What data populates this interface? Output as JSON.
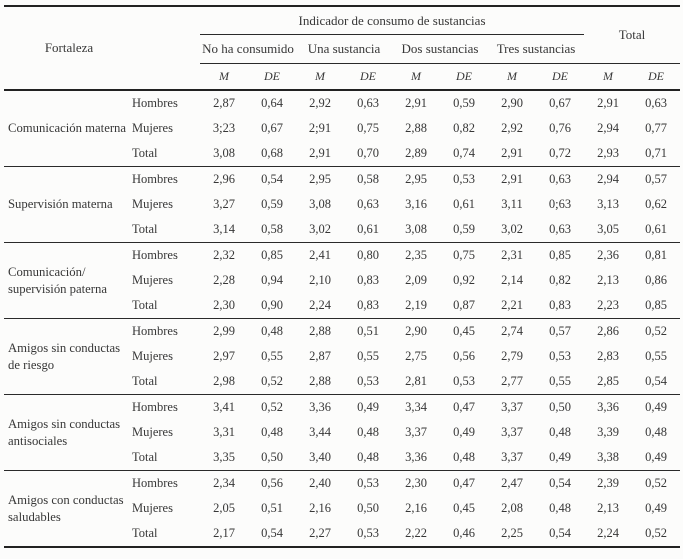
{
  "table": {
    "fortaleza_header": "Fortaleza",
    "span_header": "Indicador de consumo de sustancias",
    "total_header": "Total",
    "consumption_groups": [
      "No ha consumido",
      "Una sustancia",
      "Dos sustancias",
      "Tres sustancias"
    ],
    "stat_headers": [
      "M",
      "DE"
    ],
    "groups": [
      {
        "name": "Comunicación materna",
        "lines": [
          "Comunicación materna"
        ],
        "rows": [
          {
            "label": "Hombres",
            "values": [
              "2,87",
              "0,64",
              "2,92",
              "0,63",
              "2,91",
              "0,59",
              "2,90",
              "0,67",
              "2,91",
              "0,63"
            ]
          },
          {
            "label": "Mujeres",
            "values": [
              "3;23",
              "0,67",
              "2;91",
              "0,75",
              "2,88",
              "0,82",
              "2,92",
              "0,76",
              "2,94",
              "0,77"
            ]
          },
          {
            "label": "Total",
            "values": [
              "3,08",
              "0,68",
              "2,91",
              "0,70",
              "2,89",
              "0,74",
              "2,91",
              "0,72",
              "2,93",
              "0,71"
            ]
          }
        ]
      },
      {
        "name": "Supervisión materna",
        "lines": [
          "Supervisión materna"
        ],
        "rows": [
          {
            "label": "Hombres",
            "values": [
              "2,96",
              "0,54",
              "2,95",
              "0,58",
              "2,95",
              "0,53",
              "2,91",
              "0,63",
              "2,94",
              "0,57"
            ]
          },
          {
            "label": "Mujeres",
            "values": [
              "3,27",
              "0,59",
              "3,08",
              "0,63",
              "3,16",
              "0,61",
              "3,11",
              "0;63",
              "3,13",
              "0,62"
            ]
          },
          {
            "label": "Total",
            "values": [
              "3,14",
              "0,58",
              "3,02",
              "0,61",
              "3,08",
              "0,59",
              "3,02",
              "0,63",
              "3,05",
              "0,61"
            ]
          }
        ]
      },
      {
        "name": "Comunicación/ supervisión paterna",
        "lines": [
          "Comunicación/",
          "supervisión paterna"
        ],
        "rows": [
          {
            "label": "Hombres",
            "values": [
              "2,32",
              "0,85",
              "2,41",
              "0,80",
              "2,35",
              "0,75",
              "2,31",
              "0,85",
              "2,36",
              "0,81"
            ]
          },
          {
            "label": "Mujeres",
            "values": [
              "2,28",
              "0,94",
              "2,10",
              "0,83",
              "2,09",
              "0,92",
              "2,14",
              "0,82",
              "2,13",
              "0,86"
            ]
          },
          {
            "label": "Total",
            "values": [
              "2,30",
              "0,90",
              "2,24",
              "0,83",
              "2,19",
              "0,87",
              "2,21",
              "0,83",
              "2,23",
              "0,85"
            ]
          }
        ]
      },
      {
        "name": "Amigos sin conductas de riesgo",
        "lines": [
          "Amigos sin conductas",
          "de riesgo"
        ],
        "rows": [
          {
            "label": "Hombres",
            "values": [
              "2,99",
              "0,48",
              "2,88",
              "0,51",
              "2,90",
              "0,45",
              "2,74",
              "0,57",
              "2,86",
              "0,52"
            ]
          },
          {
            "label": "Mujeres",
            "values": [
              "2,97",
              "0,55",
              "2,87",
              "0,55",
              "2,75",
              "0,56",
              "2,79",
              "0,53",
              "2,83",
              "0,55"
            ]
          },
          {
            "label": "Total",
            "values": [
              "2,98",
              "0,52",
              "2,88",
              "0,53",
              "2,81",
              "0,53",
              "2,77",
              "0,55",
              "2,85",
              "0,54"
            ]
          }
        ]
      },
      {
        "name": "Amigos sin conductas antisociales",
        "lines": [
          "Amigos sin conductas",
          "antisociales"
        ],
        "rows": [
          {
            "label": "Hombres",
            "values": [
              "3,41",
              "0,52",
              "3,36",
              "0,49",
              "3,34",
              "0,47",
              "3,37",
              "0,50",
              "3,36",
              "0,49"
            ]
          },
          {
            "label": "Mujeres",
            "values": [
              "3,31",
              "0,48",
              "3,44",
              "0,48",
              "3,37",
              "0,49",
              "3,37",
              "0,48",
              "3,39",
              "0,48"
            ]
          },
          {
            "label": "Total",
            "values": [
              "3,35",
              "0,50",
              "3,40",
              "0,48",
              "3,36",
              "0,48",
              "3,37",
              "0,49",
              "3,38",
              "0,49"
            ]
          }
        ]
      },
      {
        "name": "Amigos con conductas saludables",
        "lines": [
          "Amigos con conductas",
          "saludables"
        ],
        "rows": [
          {
            "label": "Hombres",
            "values": [
              "2,34",
              "0,56",
              "2,40",
              "0,53",
              "2,30",
              "0,47",
              "2,47",
              "0,54",
              "2,39",
              "0,52"
            ]
          },
          {
            "label": "Mujeres",
            "values": [
              "2,05",
              "0,51",
              "2,16",
              "0,50",
              "2,16",
              "0,45",
              "2,08",
              "0,48",
              "2,13",
              "0,49"
            ]
          },
          {
            "label": "Total",
            "values": [
              "2,17",
              "0,54",
              "2,27",
              "0,53",
              "2,22",
              "0,46",
              "2,25",
              "0,54",
              "2,24",
              "0,52"
            ]
          }
        ]
      }
    ]
  }
}
